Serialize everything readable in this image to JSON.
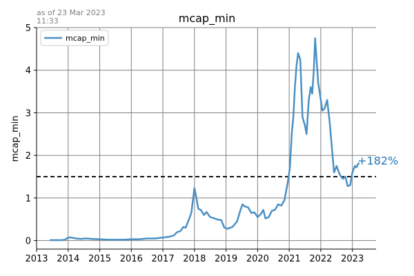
{
  "chart_data": {
    "type": "line",
    "title": "mcap_min",
    "ylabel": "mcap_min",
    "xlabel": "",
    "as_of_line1": "as of 23 Mar 2023",
    "as_of_line2": "11:33",
    "xlim": [
      2013.0,
      2023.75
    ],
    "ylim": [
      -0.2,
      5
    ],
    "x_ticks": [
      2013,
      2014,
      2015,
      2016,
      2017,
      2018,
      2019,
      2020,
      2021,
      2022,
      2023
    ],
    "x_tick_labels": [
      "2013",
      "2014",
      "2015",
      "2016",
      "2017",
      "2018",
      "2019",
      "2020",
      "2021",
      "2022",
      "2023"
    ],
    "y_ticks": [
      0,
      1,
      2,
      3,
      4,
      5
    ],
    "y_tick_labels": [
      "0",
      "1",
      "2",
      "3",
      "4",
      "5"
    ],
    "grid": true,
    "legend_position": "top-left",
    "reference_line": {
      "y": 1.5,
      "style": "dashed",
      "color": "#000000"
    },
    "annotation": {
      "text": "+182%",
      "x": 2023.25,
      "y": 1.8,
      "color": "#1f77b4"
    },
    "series": [
      {
        "name": "mcap_min",
        "color": "#4a90c4",
        "points": [
          [
            2013.42,
            0.01
          ],
          [
            2013.6,
            0.01
          ],
          [
            2013.8,
            0.01
          ],
          [
            2013.9,
            0.02
          ],
          [
            2014.0,
            0.07
          ],
          [
            2014.1,
            0.07
          ],
          [
            2014.25,
            0.05
          ],
          [
            2014.4,
            0.04
          ],
          [
            2014.55,
            0.05
          ],
          [
            2014.75,
            0.04
          ],
          [
            2015.0,
            0.03
          ],
          [
            2015.25,
            0.02
          ],
          [
            2015.5,
            0.02
          ],
          [
            2015.75,
            0.02
          ],
          [
            2016.0,
            0.03
          ],
          [
            2016.25,
            0.03
          ],
          [
            2016.5,
            0.05
          ],
          [
            2016.75,
            0.05
          ],
          [
            2017.0,
            0.07
          ],
          [
            2017.2,
            0.09
          ],
          [
            2017.35,
            0.12
          ],
          [
            2017.45,
            0.2
          ],
          [
            2017.55,
            0.22
          ],
          [
            2017.65,
            0.32
          ],
          [
            2017.72,
            0.3
          ],
          [
            2017.8,
            0.45
          ],
          [
            2017.9,
            0.65
          ],
          [
            2017.96,
            1.0
          ],
          [
            2018.0,
            1.23
          ],
          [
            2018.05,
            1.05
          ],
          [
            2018.12,
            0.75
          ],
          [
            2018.2,
            0.72
          ],
          [
            2018.3,
            0.6
          ],
          [
            2018.38,
            0.67
          ],
          [
            2018.5,
            0.55
          ],
          [
            2018.6,
            0.53
          ],
          [
            2018.7,
            0.5
          ],
          [
            2018.85,
            0.48
          ],
          [
            2018.95,
            0.3
          ],
          [
            2019.05,
            0.28
          ],
          [
            2019.2,
            0.32
          ],
          [
            2019.35,
            0.45
          ],
          [
            2019.45,
            0.7
          ],
          [
            2019.52,
            0.85
          ],
          [
            2019.6,
            0.8
          ],
          [
            2019.7,
            0.78
          ],
          [
            2019.8,
            0.65
          ],
          [
            2019.9,
            0.66
          ],
          [
            2020.0,
            0.55
          ],
          [
            2020.1,
            0.62
          ],
          [
            2020.18,
            0.72
          ],
          [
            2020.25,
            0.52
          ],
          [
            2020.35,
            0.55
          ],
          [
            2020.45,
            0.7
          ],
          [
            2020.55,
            0.72
          ],
          [
            2020.65,
            0.85
          ],
          [
            2020.75,
            0.82
          ],
          [
            2020.85,
            0.95
          ],
          [
            2020.95,
            1.35
          ],
          [
            2021.02,
            1.7
          ],
          [
            2021.08,
            2.5
          ],
          [
            2021.13,
            2.9
          ],
          [
            2021.18,
            3.6
          ],
          [
            2021.23,
            4.1
          ],
          [
            2021.28,
            4.4
          ],
          [
            2021.35,
            4.25
          ],
          [
            2021.42,
            2.9
          ],
          [
            2021.5,
            2.7
          ],
          [
            2021.55,
            2.5
          ],
          [
            2021.62,
            3.3
          ],
          [
            2021.68,
            3.6
          ],
          [
            2021.73,
            3.45
          ],
          [
            2021.78,
            4.0
          ],
          [
            2021.82,
            4.75
          ],
          [
            2021.87,
            4.2
          ],
          [
            2021.92,
            3.7
          ],
          [
            2021.98,
            3.4
          ],
          [
            2022.05,
            3.05
          ],
          [
            2022.12,
            3.1
          ],
          [
            2022.2,
            3.3
          ],
          [
            2022.28,
            2.8
          ],
          [
            2022.35,
            2.2
          ],
          [
            2022.42,
            1.6
          ],
          [
            2022.5,
            1.75
          ],
          [
            2022.6,
            1.55
          ],
          [
            2022.7,
            1.45
          ],
          [
            2022.78,
            1.5
          ],
          [
            2022.85,
            1.28
          ],
          [
            2022.93,
            1.3
          ],
          [
            2023.0,
            1.6
          ],
          [
            2023.08,
            1.75
          ],
          [
            2023.13,
            1.72
          ],
          [
            2023.18,
            1.8
          ],
          [
            2023.22,
            1.82
          ]
        ]
      }
    ]
  }
}
